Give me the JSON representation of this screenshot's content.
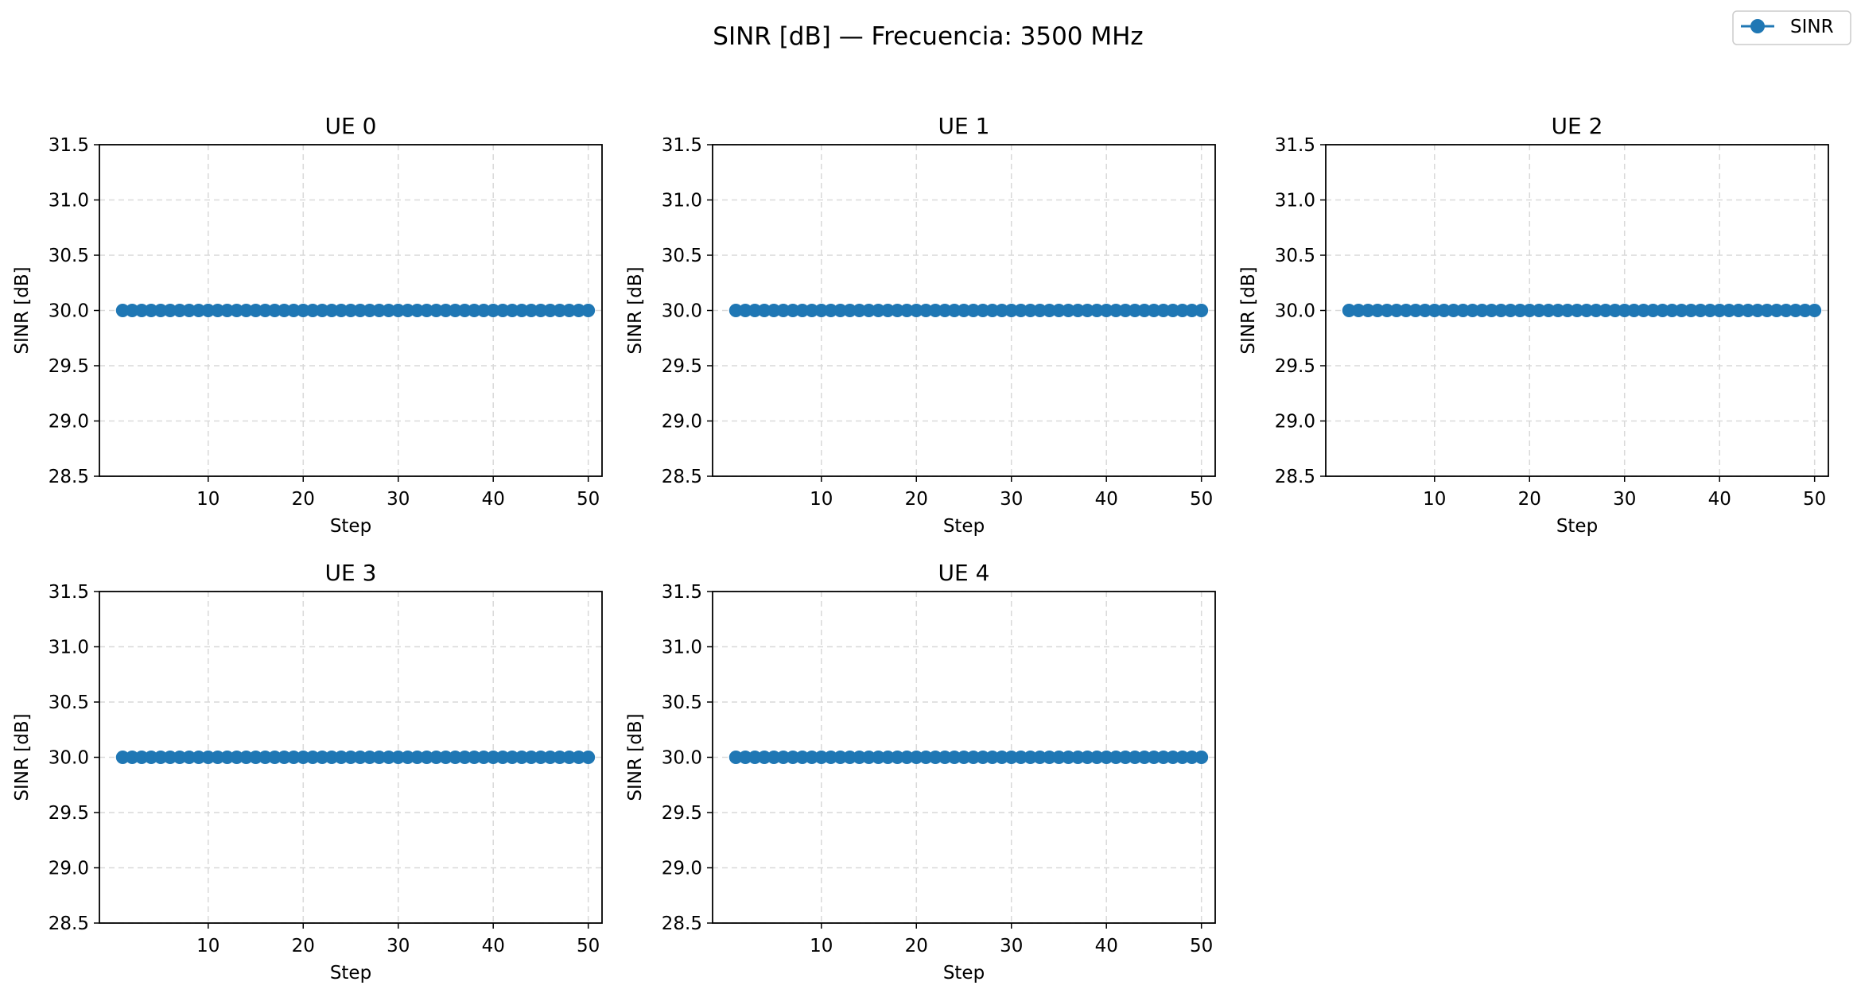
{
  "figure": {
    "title": "SINR [dB] — Frecuencia: 3500 MHz",
    "legend": {
      "position": "top-right",
      "label": "SINR"
    }
  },
  "colors": {
    "series": "#1f77b4",
    "grid": "#d9d9d9",
    "axis": "#000000"
  },
  "chart_data": [
    {
      "type": "line",
      "title": "UE 0",
      "xlabel": "Step",
      "ylabel": "SINR [dB]",
      "xlim": [
        -1.45,
        51.45
      ],
      "ylim": [
        28.5,
        31.5
      ],
      "xticks": [
        "10",
        "20",
        "30",
        "40",
        "50"
      ],
      "yticks": [
        "28.5",
        "29.0",
        "29.5",
        "30.0",
        "30.5",
        "31.0",
        "31.5"
      ],
      "grid": true,
      "marker": "circle",
      "series": [
        {
          "name": "SINR",
          "x": [
            1,
            2,
            3,
            4,
            5,
            6,
            7,
            8,
            9,
            10,
            11,
            12,
            13,
            14,
            15,
            16,
            17,
            18,
            19,
            20,
            21,
            22,
            23,
            24,
            25,
            26,
            27,
            28,
            29,
            30,
            31,
            32,
            33,
            34,
            35,
            36,
            37,
            38,
            39,
            40,
            41,
            42,
            43,
            44,
            45,
            46,
            47,
            48,
            49,
            50
          ],
          "y": [
            30,
            30,
            30,
            30,
            30,
            30,
            30,
            30,
            30,
            30,
            30,
            30,
            30,
            30,
            30,
            30,
            30,
            30,
            30,
            30,
            30,
            30,
            30,
            30,
            30,
            30,
            30,
            30,
            30,
            30,
            30,
            30,
            30,
            30,
            30,
            30,
            30,
            30,
            30,
            30,
            30,
            30,
            30,
            30,
            30,
            30,
            30,
            30,
            30,
            30
          ]
        }
      ]
    },
    {
      "type": "line",
      "title": "UE 1",
      "xlabel": "Step",
      "ylabel": "SINR [dB]",
      "xlim": [
        -1.45,
        51.45
      ],
      "ylim": [
        28.5,
        31.5
      ],
      "xticks": [
        "10",
        "20",
        "30",
        "40",
        "50"
      ],
      "yticks": [
        "28.5",
        "29.0",
        "29.5",
        "30.0",
        "30.5",
        "31.0",
        "31.5"
      ],
      "grid": true,
      "marker": "circle",
      "series": [
        {
          "name": "SINR",
          "x": [
            1,
            2,
            3,
            4,
            5,
            6,
            7,
            8,
            9,
            10,
            11,
            12,
            13,
            14,
            15,
            16,
            17,
            18,
            19,
            20,
            21,
            22,
            23,
            24,
            25,
            26,
            27,
            28,
            29,
            30,
            31,
            32,
            33,
            34,
            35,
            36,
            37,
            38,
            39,
            40,
            41,
            42,
            43,
            44,
            45,
            46,
            47,
            48,
            49,
            50
          ],
          "y": [
            30,
            30,
            30,
            30,
            30,
            30,
            30,
            30,
            30,
            30,
            30,
            30,
            30,
            30,
            30,
            30,
            30,
            30,
            30,
            30,
            30,
            30,
            30,
            30,
            30,
            30,
            30,
            30,
            30,
            30,
            30,
            30,
            30,
            30,
            30,
            30,
            30,
            30,
            30,
            30,
            30,
            30,
            30,
            30,
            30,
            30,
            30,
            30,
            30,
            30
          ]
        }
      ]
    },
    {
      "type": "line",
      "title": "UE 2",
      "xlabel": "Step",
      "ylabel": "SINR [dB]",
      "xlim": [
        -1.45,
        51.45
      ],
      "ylim": [
        28.5,
        31.5
      ],
      "xticks": [
        "10",
        "20",
        "30",
        "40",
        "50"
      ],
      "yticks": [
        "28.5",
        "29.0",
        "29.5",
        "30.0",
        "30.5",
        "31.0",
        "31.5"
      ],
      "grid": true,
      "marker": "circle",
      "series": [
        {
          "name": "SINR",
          "x": [
            1,
            2,
            3,
            4,
            5,
            6,
            7,
            8,
            9,
            10,
            11,
            12,
            13,
            14,
            15,
            16,
            17,
            18,
            19,
            20,
            21,
            22,
            23,
            24,
            25,
            26,
            27,
            28,
            29,
            30,
            31,
            32,
            33,
            34,
            35,
            36,
            37,
            38,
            39,
            40,
            41,
            42,
            43,
            44,
            45,
            46,
            47,
            48,
            49,
            50
          ],
          "y": [
            30,
            30,
            30,
            30,
            30,
            30,
            30,
            30,
            30,
            30,
            30,
            30,
            30,
            30,
            30,
            30,
            30,
            30,
            30,
            30,
            30,
            30,
            30,
            30,
            30,
            30,
            30,
            30,
            30,
            30,
            30,
            30,
            30,
            30,
            30,
            30,
            30,
            30,
            30,
            30,
            30,
            30,
            30,
            30,
            30,
            30,
            30,
            30,
            30,
            30
          ]
        }
      ]
    },
    {
      "type": "line",
      "title": "UE 3",
      "xlabel": "Step",
      "ylabel": "SINR [dB]",
      "xlim": [
        -1.45,
        51.45
      ],
      "ylim": [
        28.5,
        31.5
      ],
      "xticks": [
        "10",
        "20",
        "30",
        "40",
        "50"
      ],
      "yticks": [
        "28.5",
        "29.0",
        "29.5",
        "30.0",
        "30.5",
        "31.0",
        "31.5"
      ],
      "grid": true,
      "marker": "circle",
      "series": [
        {
          "name": "SINR",
          "x": [
            1,
            2,
            3,
            4,
            5,
            6,
            7,
            8,
            9,
            10,
            11,
            12,
            13,
            14,
            15,
            16,
            17,
            18,
            19,
            20,
            21,
            22,
            23,
            24,
            25,
            26,
            27,
            28,
            29,
            30,
            31,
            32,
            33,
            34,
            35,
            36,
            37,
            38,
            39,
            40,
            41,
            42,
            43,
            44,
            45,
            46,
            47,
            48,
            49,
            50
          ],
          "y": [
            30,
            30,
            30,
            30,
            30,
            30,
            30,
            30,
            30,
            30,
            30,
            30,
            30,
            30,
            30,
            30,
            30,
            30,
            30,
            30,
            30,
            30,
            30,
            30,
            30,
            30,
            30,
            30,
            30,
            30,
            30,
            30,
            30,
            30,
            30,
            30,
            30,
            30,
            30,
            30,
            30,
            30,
            30,
            30,
            30,
            30,
            30,
            30,
            30,
            30
          ]
        }
      ]
    },
    {
      "type": "line",
      "title": "UE 4",
      "xlabel": "Step",
      "ylabel": "SINR [dB]",
      "xlim": [
        -1.45,
        51.45
      ],
      "ylim": [
        28.5,
        31.5
      ],
      "xticks": [
        "10",
        "20",
        "30",
        "40",
        "50"
      ],
      "yticks": [
        "28.5",
        "29.0",
        "29.5",
        "30.0",
        "30.5",
        "31.0",
        "31.5"
      ],
      "grid": true,
      "marker": "circle",
      "series": [
        {
          "name": "SINR",
          "x": [
            1,
            2,
            3,
            4,
            5,
            6,
            7,
            8,
            9,
            10,
            11,
            12,
            13,
            14,
            15,
            16,
            17,
            18,
            19,
            20,
            21,
            22,
            23,
            24,
            25,
            26,
            27,
            28,
            29,
            30,
            31,
            32,
            33,
            34,
            35,
            36,
            37,
            38,
            39,
            40,
            41,
            42,
            43,
            44,
            45,
            46,
            47,
            48,
            49,
            50
          ],
          "y": [
            30,
            30,
            30,
            30,
            30,
            30,
            30,
            30,
            30,
            30,
            30,
            30,
            30,
            30,
            30,
            30,
            30,
            30,
            30,
            30,
            30,
            30,
            30,
            30,
            30,
            30,
            30,
            30,
            30,
            30,
            30,
            30,
            30,
            30,
            30,
            30,
            30,
            30,
            30,
            30,
            30,
            30,
            30,
            30,
            30,
            30,
            30,
            30,
            30,
            30
          ]
        }
      ]
    }
  ]
}
